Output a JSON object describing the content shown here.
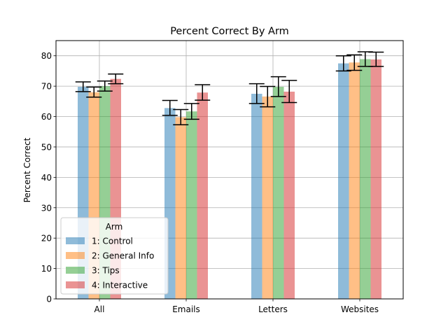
{
  "chart_data": {
    "type": "bar",
    "title": "Percent Correct By Arm",
    "xlabel": "",
    "ylabel": "Percent Correct",
    "ylim": [
      0,
      85
    ],
    "yticks": [
      0,
      10,
      20,
      30,
      40,
      50,
      60,
      70,
      80
    ],
    "grid": true,
    "categories": [
      "All",
      "Emails",
      "Letters",
      "Websites"
    ],
    "legend": {
      "title": "Arm",
      "position": "lower-left"
    },
    "series": [
      {
        "name": "1: Control",
        "color": "#1f77b4",
        "values": [
          69.8,
          62.8,
          67.5,
          77.5
        ],
        "error_low": [
          68.2,
          60.4,
          64.3,
          75.0
        ],
        "error_high": [
          71.4,
          65.3,
          70.8,
          80.0
        ]
      },
      {
        "name": "2: General Info",
        "color": "#ff7f0e",
        "values": [
          68.0,
          59.8,
          66.6,
          77.8
        ],
        "error_low": [
          66.4,
          57.3,
          63.2,
          75.2
        ],
        "error_high": [
          69.7,
          62.3,
          69.9,
          80.3
        ]
      },
      {
        "name": "3: Tips",
        "color": "#2ca02c",
        "values": [
          70.0,
          61.7,
          69.8,
          78.9
        ],
        "error_low": [
          68.4,
          59.1,
          66.6,
          76.5
        ],
        "error_high": [
          71.7,
          64.3,
          73.1,
          81.3
        ]
      },
      {
        "name": "4: Interactive",
        "color": "#d62728",
        "values": [
          72.4,
          67.9,
          68.2,
          78.8
        ],
        "error_low": [
          70.8,
          65.4,
          64.6,
          76.5
        ],
        "error_high": [
          74.0,
          70.5,
          71.9,
          81.2
        ]
      }
    ]
  }
}
